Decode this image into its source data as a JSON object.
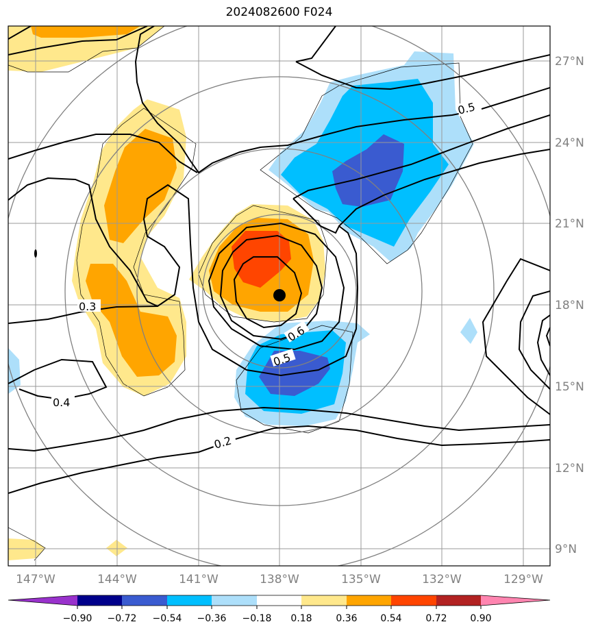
{
  "title": "2024082600 F024",
  "lat_labels": [
    "27°N",
    "24°N",
    "21°N",
    "18°N",
    "15°N",
    "12°N",
    "9°N"
  ],
  "lon_labels": [
    "147°W",
    "144°W",
    "141°W",
    "138°W",
    "135°W",
    "132°W",
    "129°W"
  ],
  "contour_labels": [
    "0.5",
    "0.3",
    "0.6",
    "0.5",
    "0.4",
    "0.2"
  ],
  "colorbar": {
    "ticks": [
      "−0.90",
      "−0.72",
      "−0.54",
      "−0.36",
      "−0.18",
      "0.18",
      "0.36",
      "0.54",
      "0.72",
      "0.90"
    ],
    "colors": [
      "#9932CC",
      "#00008B",
      "#3A5BD0",
      "#00BFFF",
      "#ADDFFA",
      "#FFFFFF",
      "#FFE88C",
      "#FFA500",
      "#FF4500",
      "#B22222",
      "#FF85B0"
    ]
  },
  "center_marker": {
    "lon": -138,
    "lat": 18.3
  }
}
